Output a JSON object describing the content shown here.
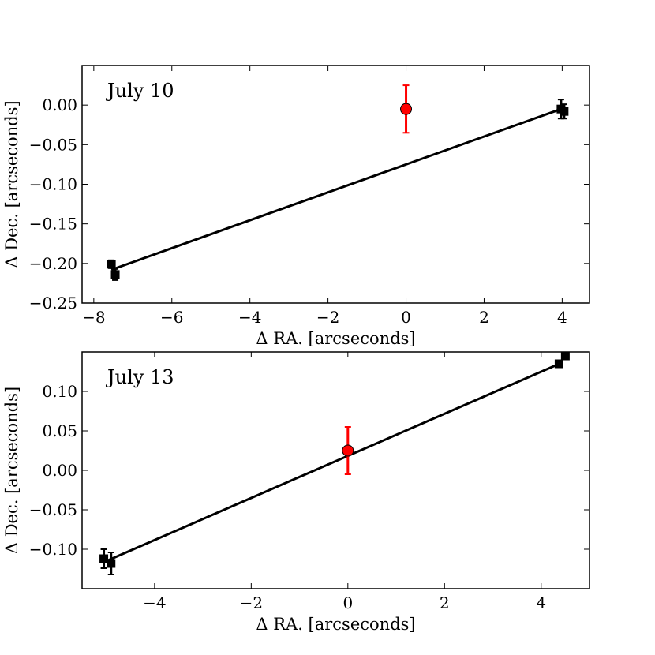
{
  "chart_data": [
    {
      "type": "scatter",
      "annotation": "July 10",
      "xlabel": "Δ RA. [arcseconds]",
      "ylabel": "Δ Dec. [arcseconds]",
      "xlim": [
        -8.3,
        4.7
      ],
      "ylim": [
        -0.25,
        0.05
      ],
      "xticks": [
        -8,
        -6,
        -4,
        -2,
        0,
        2,
        4
      ],
      "yticks": [
        -0.25,
        -0.2,
        -0.15,
        -0.1,
        -0.05,
        0.0
      ],
      "xtick_labels": [
        "−8",
        "−6",
        "−4",
        "−2",
        "0",
        "2",
        "4"
      ],
      "ytick_labels": [
        "−0.25",
        "−0.20",
        "−0.15",
        "−0.10",
        "−0.05",
        "0.00"
      ],
      "grid": false,
      "series": [
        {
          "marker": "square",
          "color": "#000000",
          "points": [
            {
              "x": -7.55,
              "y": -0.201,
              "yerr": 0.005
            },
            {
              "x": -7.45,
              "y": -0.214,
              "yerr": 0.007
            },
            {
              "x": 3.97,
              "y": -0.005,
              "yerr": 0.012
            },
            {
              "x": 4.05,
              "y": -0.008,
              "yerr": 0.009
            }
          ]
        },
        {
          "marker": "circle",
          "color": "#ff0000",
          "points": [
            {
              "x": 0.0,
              "y": -0.005,
              "yerr": 0.03
            }
          ]
        }
      ],
      "fit_line": {
        "color": "#000000",
        "x": [
          -7.55,
          3.97
        ],
        "y": [
          -0.208,
          -0.005
        ]
      }
    },
    {
      "type": "scatter",
      "annotation": "July 13",
      "xlabel": "Δ RA. [arcseconds]",
      "ylabel": "Δ Dec. [arcseconds]",
      "xlim": [
        -5.5,
        5.0
      ],
      "ylim": [
        -0.15,
        0.15
      ],
      "xticks": [
        -4,
        -2,
        0,
        2,
        4
      ],
      "yticks": [
        -0.1,
        -0.05,
        0.0,
        0.05,
        0.1
      ],
      "xtick_labels": [
        "−4",
        "−2",
        "0",
        "2",
        "4"
      ],
      "ytick_labels": [
        "−0.10",
        "−0.05",
        "0.00",
        "0.05",
        "0.10"
      ],
      "grid": false,
      "series": [
        {
          "marker": "square",
          "color": "#000000",
          "points": [
            {
              "x": -5.05,
              "y": -0.112,
              "yerr": 0.012
            },
            {
              "x": -4.9,
              "y": -0.118,
              "yerr": 0.014
            },
            {
              "x": 4.37,
              "y": 0.135,
              "yerr": 0.003
            },
            {
              "x": 4.5,
              "y": 0.145,
              "yerr": 0.003
            }
          ]
        },
        {
          "marker": "circle",
          "color": "#ff0000",
          "points": [
            {
              "x": 0.0,
              "y": 0.025,
              "yerr": 0.03
            }
          ]
        }
      ],
      "fit_line": {
        "color": "#000000",
        "x": [
          -5.0,
          4.45
        ],
        "y": [
          -0.115,
          0.137
        ]
      }
    }
  ]
}
